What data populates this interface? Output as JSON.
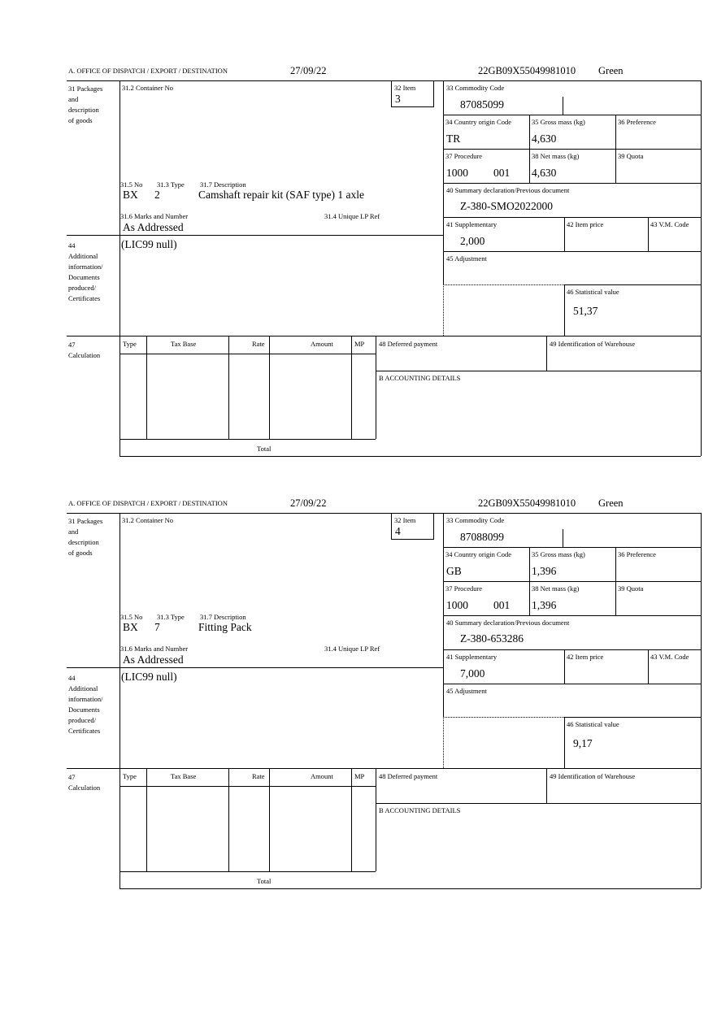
{
  "labels": {
    "office": "A.  OFFICE OF DISPATCH / EXPORT / DESTINATION",
    "box31": "31 Packages\nand\ndescription\nof goods",
    "box31_2": "31.2 Container No",
    "box32": "32 Item",
    "box31_5": "31.5 No",
    "box31_3": "31.3 Type",
    "box31_7": "31.7 Description",
    "box31_6": "31.6 Marks and Number",
    "box31_4": "31.4 Unique LP Ref",
    "box33": "33 Commodity Code",
    "box34": "34 Country origin Code",
    "box35": "35 Gross mass (kg)",
    "box36": "36 Preference",
    "box37": "37 Procedure",
    "box38": "38 Net mass (kg)",
    "box39": "39 Quota",
    "box40": "40 Summary declaration/Previous document",
    "box41": "41 Supplementary",
    "box42": "42 Item price",
    "box43": "43 V.M. Code",
    "box44": "44\nAdditional\ninformation/\nDocuments\nproduced/\nCertificates",
    "box45": "45 Adjustment",
    "box46": "46 Statistical value",
    "box47": "47\nCalculation",
    "calc_type": "Type",
    "calc_taxbase": "Tax Base",
    "calc_rate": "Rate",
    "calc_amount": "Amount",
    "calc_mp": "MP",
    "calc_total": "Total",
    "box48": "48 Deferred payment",
    "box49": "49 Identification of Warehouse",
    "boxB": "B ACCOUNTING DETAILS"
  },
  "forms": [
    {
      "date": "27/09/22",
      "reference": "22GB09X55049981010",
      "route": "Green",
      "item": "3",
      "no": "BX",
      "type": "2",
      "description": "Camshaft repair kit (SAF type) 1 axle",
      "marks": "As Addressed",
      "commodity_code": "87085099",
      "country_origin": "TR",
      "gross_mass": "4,630",
      "procedure": "1000",
      "procedure_add": "001",
      "net_mass": "4,630",
      "previous_document": "Z-380-SMO2022000",
      "supplementary": "2,000",
      "additional_info": "(LIC99 null)",
      "statistical_value": "51,37"
    },
    {
      "date": "27/09/22",
      "reference": "22GB09X55049981010",
      "route": "Green",
      "item": "4",
      "no": "BX",
      "type": "7",
      "description": "Fitting Pack",
      "marks": "As Addressed",
      "commodity_code": "87088099",
      "country_origin": "GB",
      "gross_mass": "1,396",
      "procedure": "1000",
      "procedure_add": "001",
      "net_mass": "1,396",
      "previous_document": "Z-380-653286",
      "supplementary": "7,000",
      "additional_info": "(LIC99 null)",
      "statistical_value": "9,17"
    }
  ]
}
